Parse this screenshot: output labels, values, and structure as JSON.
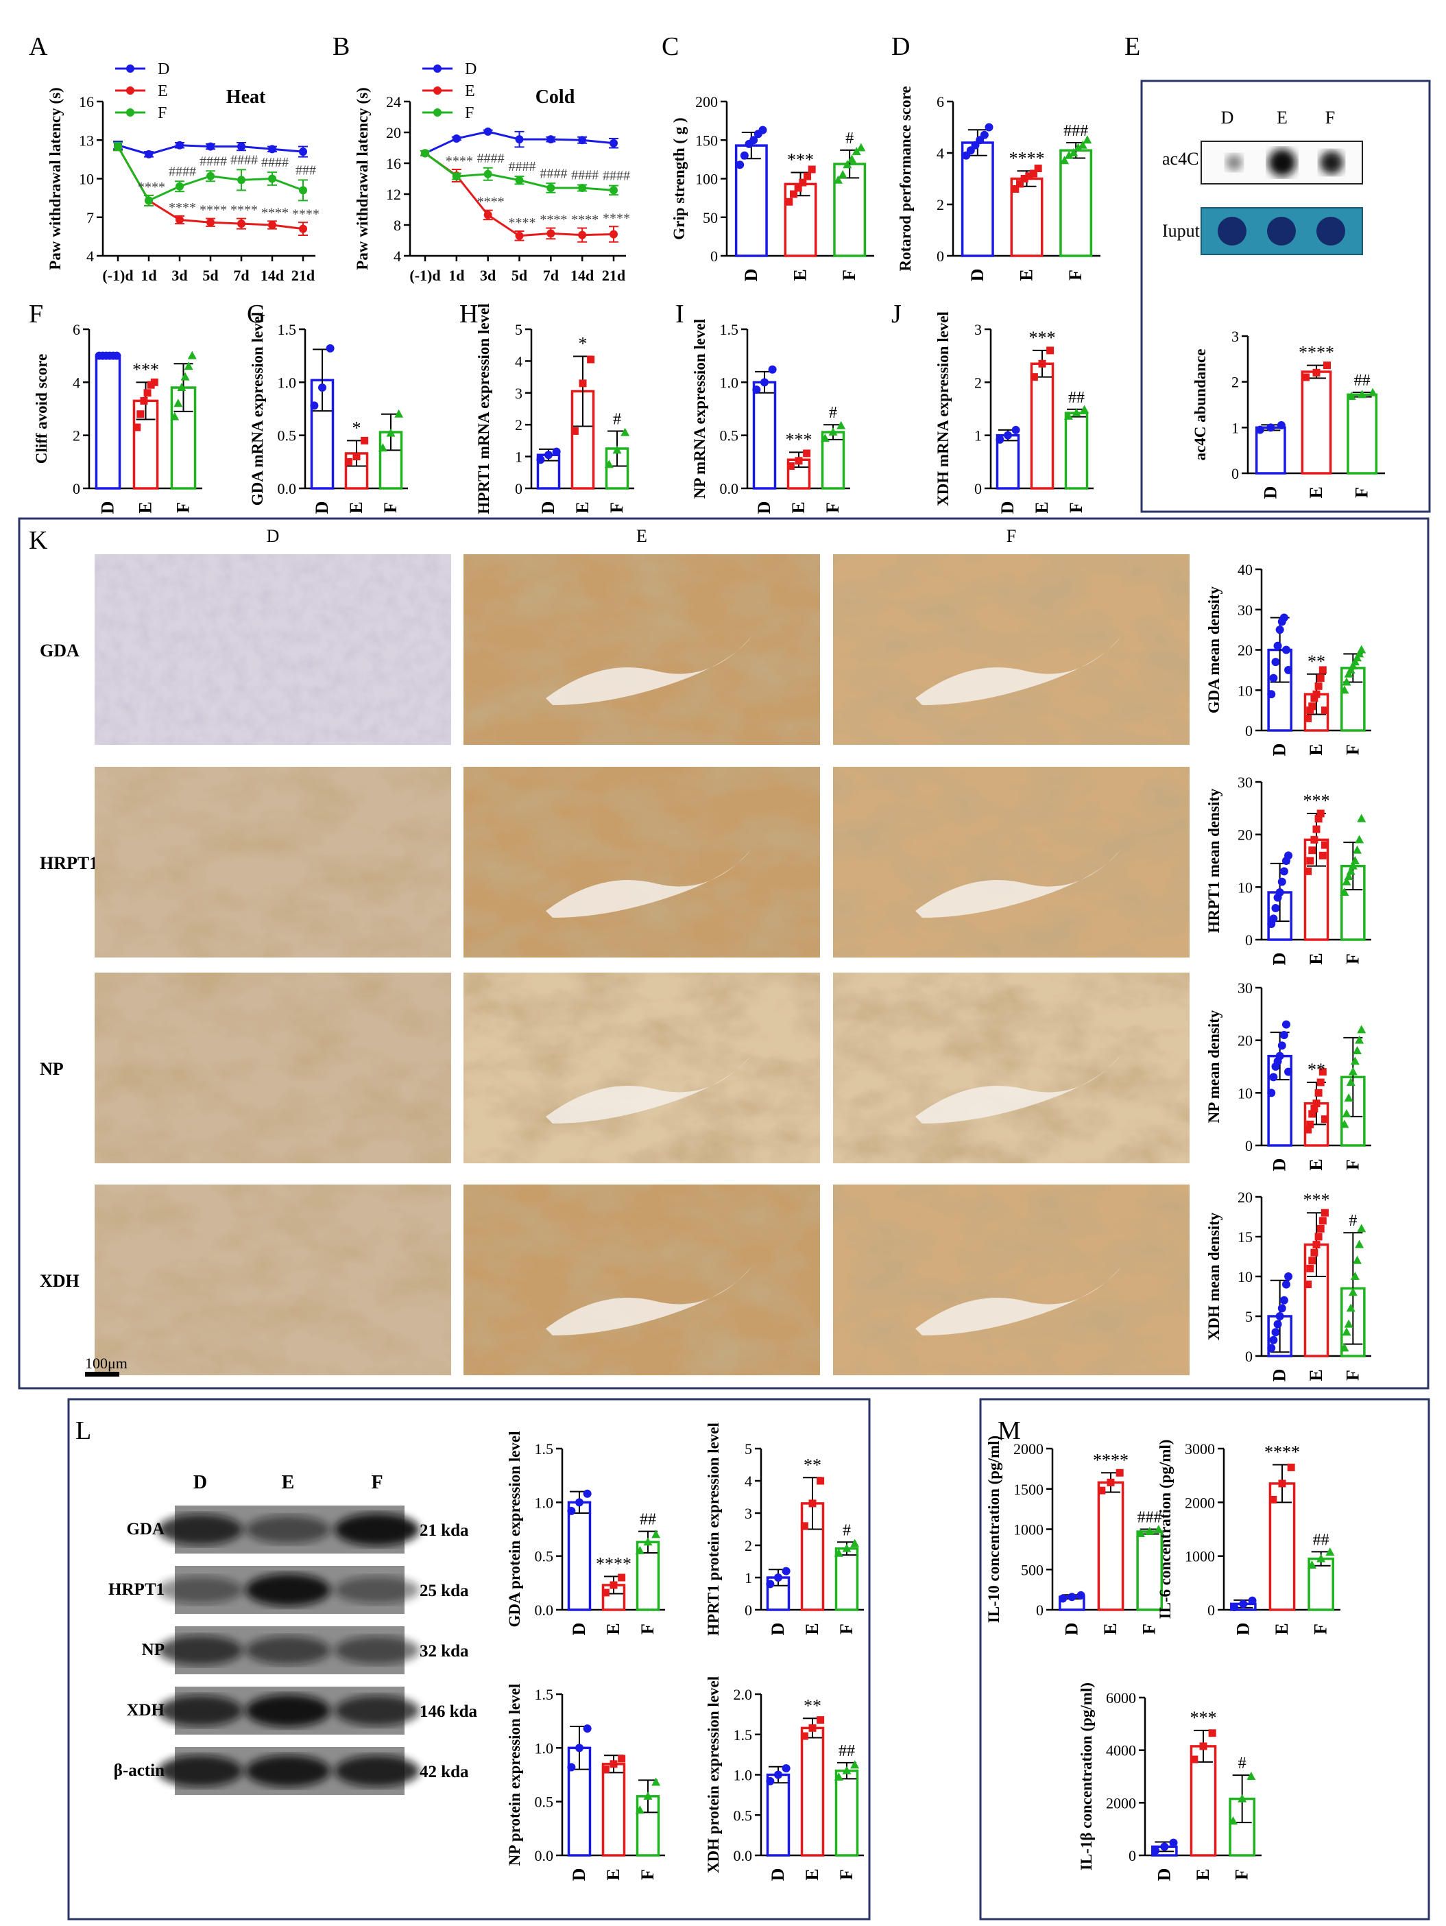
{
  "colors": {
    "D": "#1a1ae6",
    "E": "#e61a1a",
    "F": "#1fb31f"
  },
  "panel_letters": [
    "A",
    "B",
    "C",
    "D",
    "E",
    "F",
    "G",
    "H",
    "I",
    "J",
    "K",
    "L",
    "M"
  ],
  "groups": [
    "D",
    "E",
    "F"
  ],
  "chart_data": [
    {
      "id": "A",
      "type": "line",
      "title": "Heat",
      "ylabel": "Paw withdrawal latency (s)",
      "x": [
        "(-1)d",
        "1d",
        "3d",
        "5d",
        "7d",
        "14d",
        "21d"
      ],
      "ylim": [
        4,
        16
      ],
      "yticks": [
        4,
        7,
        10,
        13,
        16
      ],
      "legend": "top-left",
      "series": [
        {
          "name": "D",
          "values": [
            12.6,
            11.9,
            12.6,
            12.5,
            12.5,
            12.3,
            12.1
          ],
          "err": [
            0.3,
            0.2,
            0.2,
            0.2,
            0.3,
            0.2,
            0.4
          ]
        },
        {
          "name": "E",
          "values": [
            12.5,
            8.3,
            6.8,
            6.6,
            6.5,
            6.4,
            6.1
          ],
          "err": [
            0.3,
            0.4,
            0.3,
            0.3,
            0.4,
            0.3,
            0.5
          ]
        },
        {
          "name": "F",
          "values": [
            12.5,
            8.3,
            9.4,
            10.2,
            9.9,
            10.0,
            9.1
          ],
          "err": [
            0.3,
            0.4,
            0.4,
            0.4,
            0.8,
            0.5,
            0.8
          ]
        }
      ],
      "sig_E": [
        "",
        "****",
        "****",
        "****",
        "****",
        "****",
        "****"
      ],
      "sig_F": [
        "",
        "",
        "####",
        "####",
        "####",
        "####",
        "###"
      ]
    },
    {
      "id": "B",
      "type": "line",
      "title": "Cold",
      "ylabel": "Paw withdrawal latency (s)",
      "x": [
        "(-1)d",
        "1d",
        "3d",
        "5d",
        "7d",
        "14d",
        "21d"
      ],
      "ylim": [
        4,
        24
      ],
      "yticks": [
        4,
        8,
        12,
        16,
        20,
        24
      ],
      "legend": "top-left",
      "series": [
        {
          "name": "D",
          "values": [
            17.3,
            19.2,
            20.1,
            19.1,
            19.1,
            19.0,
            18.6
          ],
          "err": [
            0.3,
            0.2,
            0.2,
            1.0,
            0.3,
            0.4,
            0.6
          ]
        },
        {
          "name": "E",
          "values": [
            17.3,
            14.4,
            9.3,
            6.6,
            6.9,
            6.7,
            6.8
          ],
          "err": [
            0.3,
            0.8,
            0.6,
            0.6,
            0.7,
            0.9,
            1.0
          ]
        },
        {
          "name": "F",
          "values": [
            17.3,
            14.3,
            14.6,
            13.8,
            12.8,
            12.8,
            12.5
          ],
          "err": [
            0.3,
            0.4,
            0.8,
            0.5,
            0.6,
            0.4,
            0.6
          ]
        }
      ],
      "sig_E": [
        "",
        "****",
        "****",
        "****",
        "****",
        "****",
        "****"
      ],
      "sig_F": [
        "",
        "",
        "####",
        "####",
        "####",
        "####",
        "####"
      ]
    },
    {
      "id": "C",
      "type": "bar",
      "ylabel": "Grip strength ( g )",
      "categories": [
        "D",
        "E",
        "F"
      ],
      "values": [
        143,
        93,
        119
      ],
      "err": [
        17,
        15,
        18
      ],
      "ylim": [
        0,
        200
      ],
      "yticks": [
        0,
        50,
        100,
        150,
        200
      ],
      "sig": [
        "",
        "***",
        "#"
      ],
      "points": [
        [
          118,
          130,
          145,
          150,
          158,
          163
        ],
        [
          70,
          80,
          88,
          95,
          103,
          112
        ],
        [
          98,
          105,
          118,
          125,
          135,
          140
        ]
      ]
    },
    {
      "id": "D",
      "type": "bar",
      "ylabel": "Rotarod performance score",
      "categories": [
        "D",
        "E",
        "F"
      ],
      "values": [
        4.4,
        3.0,
        4.1
      ],
      "err": [
        0.5,
        0.3,
        0.3
      ],
      "ylim": [
        0,
        6
      ],
      "yticks": [
        0,
        2,
        4,
        6
      ],
      "sig": [
        "",
        "****",
        "###"
      ],
      "points": [
        [
          3.9,
          4.1,
          4.3,
          4.5,
          4.7,
          5.0
        ],
        [
          2.6,
          2.8,
          3.0,
          3.1,
          3.2,
          3.4
        ],
        [
          3.7,
          3.9,
          4.0,
          4.2,
          4.3,
          4.5
        ]
      ]
    },
    {
      "id": "E",
      "type": "bar",
      "ylabel": "Cliff avoid score",
      "categories": [
        "D",
        "E",
        "F"
      ],
      "values": [
        5.0,
        3.3,
        3.8
      ],
      "err": [
        0.0,
        0.7,
        0.9
      ],
      "ylim": [
        0,
        6
      ],
      "yticks": [
        0,
        2,
        4,
        6
      ],
      "sig": [
        "",
        "***",
        ""
      ],
      "points": [
        [
          5,
          5,
          5,
          5,
          5,
          5
        ],
        [
          2.3,
          2.8,
          3.3,
          3.6,
          3.9,
          4.0
        ],
        [
          2.7,
          3.2,
          3.8,
          4.2,
          4.6,
          5.0
        ]
      ]
    },
    {
      "id": "F",
      "type": "bar",
      "ylabel": "GDA mRNA expression level",
      "categories": [
        "D",
        "E",
        "F"
      ],
      "values": [
        1.02,
        0.33,
        0.53
      ],
      "err": [
        0.29,
        0.12,
        0.17
      ],
      "ylim": [
        0,
        1.5
      ],
      "yticks": [
        0,
        0.5,
        1.0,
        1.5
      ],
      "sig": [
        "",
        "*",
        ""
      ],
      "points": [
        [
          0.78,
          0.95,
          1.32
        ],
        [
          0.25,
          0.3,
          0.45
        ],
        [
          0.38,
          0.52,
          0.7
        ]
      ]
    },
    {
      "id": "G",
      "type": "bar",
      "ylabel": "HPRT1 mRNA expression level",
      "categories": [
        "D",
        "E",
        "F"
      ],
      "values": [
        1.05,
        3.05,
        1.25
      ],
      "err": [
        0.18,
        1.1,
        0.55
      ],
      "ylim": [
        0,
        5
      ],
      "yticks": [
        0,
        1,
        2,
        3,
        4,
        5
      ],
      "sig": [
        "",
        "*",
        "#"
      ],
      "points": [
        [
          0.9,
          1.05,
          1.15
        ],
        [
          1.8,
          3.3,
          4.05
        ],
        [
          0.75,
          1.2,
          1.75
        ]
      ]
    },
    {
      "id": "H",
      "type": "bar",
      "ylabel": "NP mRNA expression level",
      "categories": [
        "D",
        "E",
        "F"
      ],
      "values": [
        1.0,
        0.27,
        0.53
      ],
      "err": [
        0.1,
        0.07,
        0.07
      ],
      "ylim": [
        0,
        1.5
      ],
      "yticks": [
        0,
        0.5,
        1.0,
        1.5
      ],
      "sig": [
        "",
        "***",
        "#"
      ],
      "points": [
        [
          0.93,
          1.0,
          1.12
        ],
        [
          0.21,
          0.26,
          0.33
        ],
        [
          0.47,
          0.53,
          0.59
        ]
      ]
    },
    {
      "id": "I",
      "type": "bar",
      "ylabel": "XDH mRNA expression level",
      "categories": [
        "D",
        "E",
        "F"
      ],
      "values": [
        1.0,
        2.35,
        1.42
      ],
      "err": [
        0.1,
        0.25,
        0.07
      ],
      "ylim": [
        0,
        3
      ],
      "yticks": [
        0,
        1,
        2,
        3
      ],
      "sig": [
        "",
        "***",
        "##"
      ],
      "points": [
        [
          0.92,
          1.0,
          1.1
        ],
        [
          2.1,
          2.35,
          2.6
        ],
        [
          1.36,
          1.42,
          1.48
        ]
      ]
    },
    {
      "id": "J",
      "type": "bar",
      "ylabel": "ac4C abundance",
      "categories": [
        "D",
        "E",
        "F"
      ],
      "values": [
        1.0,
        2.22,
        1.72
      ],
      "err": [
        0.06,
        0.14,
        0.05
      ],
      "ylim": [
        0,
        3
      ],
      "yticks": [
        0,
        1,
        2,
        3
      ],
      "sig": [
        "",
        "****",
        "##"
      ],
      "points": [
        [
          0.95,
          1.0,
          1.05
        ],
        [
          2.1,
          2.2,
          2.36
        ],
        [
          1.68,
          1.72,
          1.76
        ]
      ]
    },
    {
      "id": "K-GDA",
      "type": "bar",
      "ylabel": "GDA mean density",
      "categories": [
        "D",
        "E",
        "F"
      ],
      "values": [
        20,
        9,
        15.5
      ],
      "err": [
        8,
        5,
        3.5
      ],
      "ylim": [
        0,
        40
      ],
      "yticks": [
        0,
        10,
        20,
        30,
        40
      ],
      "sig": [
        "",
        "**",
        ""
      ],
      "points": [
        [
          9,
          13,
          17,
          21,
          25,
          27,
          28,
          20,
          15
        ],
        [
          3,
          5,
          6,
          8,
          9,
          11,
          13,
          15,
          5
        ],
        [
          10,
          12,
          14,
          15,
          16,
          17,
          18,
          19,
          20
        ]
      ]
    },
    {
      "id": "K-HRPT1",
      "type": "bar",
      "ylabel": "HRPT1 mean density",
      "categories": [
        "D",
        "E",
        "F"
      ],
      "values": [
        9,
        19,
        14
      ],
      "err": [
        5.5,
        5,
        4.5
      ],
      "ylim": [
        0,
        30
      ],
      "yticks": [
        0,
        10,
        20,
        30
      ],
      "sig": [
        "",
        "***",
        ""
      ],
      "points": [
        [
          3,
          4,
          6,
          8,
          9,
          11,
          13,
          15,
          16
        ],
        [
          13,
          15,
          17,
          19,
          21,
          23,
          24,
          16,
          18
        ],
        [
          9,
          11,
          12,
          13,
          14,
          15,
          17,
          19,
          23
        ]
      ]
    },
    {
      "id": "K-NP",
      "type": "bar",
      "ylabel": "NP mean density",
      "categories": [
        "D",
        "E",
        "F"
      ],
      "values": [
        17,
        8,
        13
      ],
      "err": [
        4.5,
        4,
        7.5
      ],
      "ylim": [
        0,
        30
      ],
      "yticks": [
        0,
        10,
        20,
        30
      ],
      "sig": [
        "",
        "**",
        ""
      ],
      "points": [
        [
          10,
          13,
          15,
          16,
          17,
          19,
          21,
          23,
          14
        ],
        [
          3,
          4,
          6,
          7,
          8,
          10,
          12,
          14,
          5
        ],
        [
          4,
          6,
          9,
          12,
          14,
          16,
          18,
          20,
          22
        ]
      ]
    },
    {
      "id": "K-XDH",
      "type": "bar",
      "ylabel": "XDH mean density",
      "categories": [
        "D",
        "E",
        "F"
      ],
      "values": [
        5,
        14,
        8.5
      ],
      "err": [
        4.5,
        4,
        7
      ],
      "ylim": [
        0,
        20
      ],
      "yticks": [
        0,
        5,
        10,
        15,
        20
      ],
      "sig": [
        "",
        "***",
        "#"
      ],
      "points": [
        [
          1,
          2,
          3,
          4,
          5,
          6,
          7,
          9,
          10
        ],
        [
          9,
          11,
          12,
          13,
          14,
          15,
          16,
          17,
          18
        ],
        [
          1,
          3,
          4,
          6,
          8,
          10,
          12,
          14,
          16
        ]
      ]
    },
    {
      "id": "L-GDA",
      "type": "bar",
      "ylabel": "GDA protein expression level",
      "categories": [
        "D",
        "E",
        "F"
      ],
      "values": [
        1.0,
        0.23,
        0.63
      ],
      "err": [
        0.1,
        0.08,
        0.1
      ],
      "ylim": [
        0,
        1.5
      ],
      "yticks": [
        0,
        0.5,
        1.0,
        1.5
      ],
      "sig": [
        "",
        "****",
        "##"
      ],
      "points": [
        [
          0.92,
          1.0,
          1.08
        ],
        [
          0.16,
          0.23,
          0.3
        ],
        [
          0.55,
          0.63,
          0.7
        ]
      ]
    },
    {
      "id": "L-HRPT1",
      "type": "bar",
      "ylabel": "HPRT1 protein expression level",
      "categories": [
        "D",
        "E",
        "F"
      ],
      "values": [
        1.0,
        3.3,
        1.9
      ],
      "err": [
        0.25,
        0.8,
        0.2
      ],
      "ylim": [
        0,
        5
      ],
      "yticks": [
        0,
        1,
        2,
        3,
        4,
        5
      ],
      "sig": [
        "",
        "**",
        "#"
      ],
      "points": [
        [
          0.8,
          1.0,
          1.2
        ],
        [
          2.6,
          3.3,
          4.0
        ],
        [
          1.75,
          1.9,
          2.05
        ]
      ]
    },
    {
      "id": "L-NP",
      "type": "bar",
      "ylabel": "NP protein expression level",
      "categories": [
        "D",
        "E",
        "F"
      ],
      "values": [
        1.0,
        0.85,
        0.55
      ],
      "err": [
        0.2,
        0.08,
        0.15
      ],
      "ylim": [
        0,
        1.5
      ],
      "yticks": [
        0,
        0.5,
        1.0,
        1.5
      ],
      "sig": [
        "",
        "",
        ""
      ],
      "points": [
        [
          0.82,
          1.0,
          1.18
        ],
        [
          0.8,
          0.85,
          0.9
        ],
        [
          0.42,
          0.55,
          0.68
        ]
      ]
    },
    {
      "id": "L-XDH",
      "type": "bar",
      "ylabel": "XDH protein expression level",
      "categories": [
        "D",
        "E",
        "F"
      ],
      "values": [
        1.0,
        1.58,
        1.05
      ],
      "err": [
        0.1,
        0.12,
        0.1
      ],
      "ylim": [
        0,
        2.0
      ],
      "yticks": [
        0,
        0.5,
        1.0,
        1.5,
        2.0
      ],
      "sig": [
        "",
        "**",
        "##"
      ],
      "points": [
        [
          0.92,
          1.0,
          1.08
        ],
        [
          1.48,
          1.58,
          1.68
        ],
        [
          0.97,
          1.05,
          1.12
        ]
      ]
    },
    {
      "id": "M-IL10",
      "type": "bar",
      "ylabel": "IL-10 concentration (pg/ml)",
      "categories": [
        "D",
        "E",
        "F"
      ],
      "values": [
        160,
        1580,
        970
      ],
      "err": [
        25,
        120,
        30
      ],
      "ylim": [
        0,
        2000
      ],
      "yticks": [
        0,
        500,
        1000,
        1500,
        2000
      ],
      "sig": [
        "",
        "****",
        "###"
      ],
      "points": [
        [
          140,
          160,
          180
        ],
        [
          1480,
          1580,
          1700
        ],
        [
          945,
          970,
          995
        ]
      ]
    },
    {
      "id": "M-IL6",
      "type": "bar",
      "ylabel": "IL-6 concentration (pg/ml)",
      "categories": [
        "D",
        "E",
        "F"
      ],
      "values": [
        110,
        2350,
        950
      ],
      "err": [
        70,
        350,
        130
      ],
      "ylim": [
        0,
        3000
      ],
      "yticks": [
        0,
        1000,
        2000,
        3000
      ],
      "sig": [
        "",
        "****",
        "##"
      ],
      "points": [
        [
          50,
          110,
          170
        ],
        [
          2050,
          2350,
          2650
        ],
        [
          830,
          950,
          1070
        ]
      ]
    },
    {
      "id": "M-IL1b",
      "type": "bar",
      "ylabel": "IL-1β concentration (pg/ml)",
      "categories": [
        "D",
        "E",
        "F"
      ],
      "values": [
        330,
        4150,
        2150
      ],
      "err": [
        180,
        600,
        900
      ],
      "ylim": [
        0,
        6000
      ],
      "yticks": [
        0,
        2000,
        4000,
        6000
      ],
      "sig": [
        "",
        "***",
        "#"
      ],
      "points": [
        [
          180,
          330,
          480
        ],
        [
          3650,
          4150,
          4650
        ],
        [
          1300,
          2150,
          3000
        ]
      ]
    }
  ],
  "dotblot": {
    "groups": [
      "D",
      "E",
      "F"
    ],
    "row1": "ac4C",
    "row2": "Iuput"
  },
  "ihc": {
    "columns": [
      "D",
      "E",
      "F"
    ],
    "rows": [
      "GDA",
      "HRPT1",
      "NP",
      "XDH"
    ],
    "scalebar": "100μm"
  },
  "western": {
    "groups": [
      "D",
      "E",
      "F"
    ],
    "rows": [
      {
        "label": "GDA",
        "size": "21 kda"
      },
      {
        "label": "HRPT1",
        "size": "25 kda"
      },
      {
        "label": "NP",
        "size": "32 kda"
      },
      {
        "label": "XDH",
        "size": "146 kda"
      },
      {
        "label": "β-actin",
        "size": "42 kda"
      }
    ]
  }
}
